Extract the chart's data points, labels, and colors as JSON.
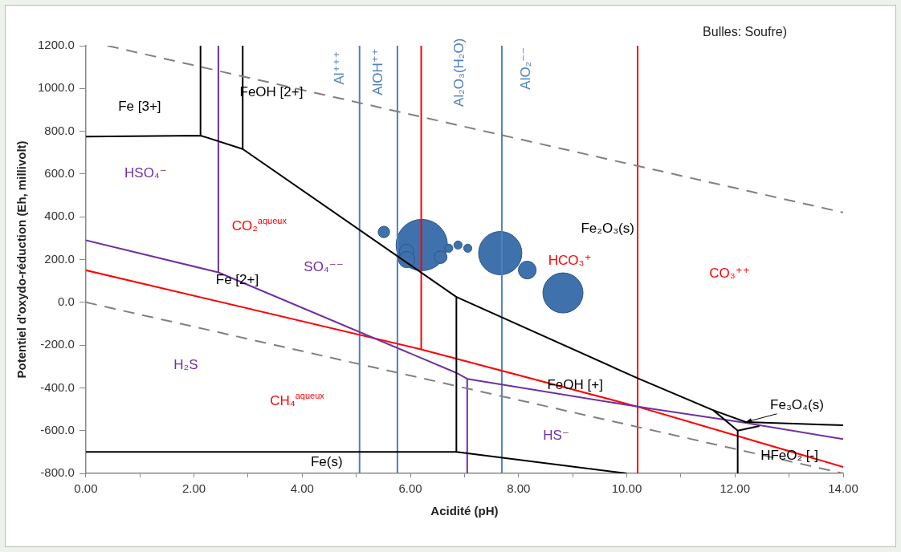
{
  "chart_data": {
    "type": "line",
    "title": "Bulles: Soufre)",
    "xlabel": "Acidité (pH)",
    "ylabel": "Potentiel d'oxydo-réduction (Eh, millivolt)",
    "xlim": [
      0,
      14
    ],
    "xticks": [
      {
        "value": 0,
        "label": "0.00"
      },
      {
        "value": 1,
        "label": null
      },
      {
        "value": 2,
        "label": "2.00"
      },
      {
        "value": 3,
        "label": null
      },
      {
        "value": 4,
        "label": "4.00"
      },
      {
        "value": 5,
        "label": null
      },
      {
        "value": 6,
        "label": "6.00"
      },
      {
        "value": 7,
        "label": null
      },
      {
        "value": 8,
        "label": "8.00"
      },
      {
        "value": 9,
        "label": null
      },
      {
        "value": 10,
        "label": "10.00"
      },
      {
        "value": 11,
        "label": null
      },
      {
        "value": 12,
        "label": "12.00"
      },
      {
        "value": 13,
        "label": null
      },
      {
        "value": 14,
        "label": "14.00"
      }
    ],
    "ylim": [
      -800,
      1200
    ],
    "yticks": [
      {
        "value": -800,
        "label": "-800.0"
      },
      {
        "value": -600,
        "label": "-600.0"
      },
      {
        "value": -400,
        "label": "-400.0"
      },
      {
        "value": -200,
        "label": "-200.0"
      },
      {
        "value": 0,
        "label": "0.0"
      },
      {
        "value": 200,
        "label": "200.0"
      },
      {
        "value": 400,
        "label": "400.0"
      },
      {
        "value": 600,
        "label": "600.0"
      },
      {
        "value": 800,
        "label": "800.0"
      },
      {
        "value": 1000,
        "label": "1000.0"
      },
      {
        "value": 1200,
        "label": "1200.0"
      }
    ],
    "grid": false,
    "legend": false,
    "series": [
      {
        "color": "#808080",
        "line_style": "dashed",
        "x": [
          0.4,
          14
        ],
        "values": [
          1200,
          420
        ]
      },
      {
        "color": "#808080",
        "line_style": "dashed",
        "x": [
          0,
          14
        ],
        "values": [
          0,
          -800
        ]
      },
      {
        "color": "#000000",
        "x": [
          0,
          2.12,
          2.9,
          6.85,
          10.2,
          11.6,
          12.05,
          12.05
        ],
        "values": [
          775,
          780,
          717,
          25,
          -355,
          -505,
          -600,
          -800
        ]
      },
      {
        "color": "#000000",
        "x": [
          2.12,
          2.12
        ],
        "values": [
          780,
          1200
        ]
      },
      {
        "color": "#000000",
        "x": [
          2.9,
          2.9
        ],
        "values": [
          717,
          1200
        ]
      },
      {
        "color": "#000000",
        "x": [
          6.85,
          6.85
        ],
        "values": [
          25,
          -700
        ]
      },
      {
        "color": "#000000",
        "x": [
          11.6,
          12.2,
          14
        ],
        "values": [
          -505,
          -560,
          -575
        ]
      },
      {
        "color": "#000000",
        "x": [
          12.05,
          12.45
        ],
        "values": [
          -600,
          -579
        ]
      },
      {
        "color": "#000000",
        "x": [
          0,
          6.85,
          10.0
        ],
        "values": [
          -700,
          -700,
          -800
        ]
      },
      {
        "color": "#7030a0",
        "x": [
          2.45,
          2.45
        ],
        "values": [
          1200,
          140
        ]
      },
      {
        "color": "#7030a0",
        "x": [
          0,
          2.45,
          6.85,
          7.05,
          10.2,
          12.1,
          14
        ],
        "values": [
          290,
          140,
          -330,
          -358,
          -488,
          -560,
          -640
        ]
      },
      {
        "color": "#7030a0",
        "x": [
          7.05,
          7.05
        ],
        "values": [
          -358,
          -800
        ]
      },
      {
        "color": "#ff0000",
        "x": [
          0,
          6.2,
          10.2,
          14
        ],
        "values": [
          150,
          -220,
          -488,
          -770
        ]
      },
      {
        "color": "#ff0000",
        "x": [
          6.2,
          6.2
        ],
        "values": [
          -220,
          1200
        ]
      },
      {
        "color": "#ff0000",
        "x": [
          10.2,
          10.2
        ],
        "values": [
          -800,
          1200
        ]
      },
      {
        "color": "#4f81bd",
        "x": [
          5.06,
          5.06
        ],
        "values": [
          1200,
          -800
        ]
      },
      {
        "color": "#4f81bd",
        "x": [
          5.76,
          5.76
        ],
        "values": [
          1200,
          -800
        ]
      },
      {
        "color": "#4f81bd",
        "x": [
          7.69,
          7.69
        ],
        "values": [
          1200,
          -800
        ]
      },
      {
        "type": "bubble",
        "color": "#3f72ad",
        "x": [
          5.51,
          6.21,
          5.93,
          5.93,
          6.56,
          6.71,
          6.88,
          7.06,
          7.66,
          8.16,
          8.82
        ],
        "values": [
          329,
          268,
          238,
          200,
          211,
          253,
          268,
          253,
          230,
          151,
          44
        ],
        "sizes": [
          0.05,
          1,
          0.08,
          0.1,
          0.06,
          0.025,
          0.025,
          0.025,
          0.71,
          0.12,
          0.61
        ]
      }
    ],
    "annotations": [
      "Fe [3+]",
      "FeOH [2+]",
      "HSO₄⁻",
      "CO₂$^{aqueux}$",
      "SO₄⁻⁻",
      "Fe [2+]",
      "H₂S",
      "CH₄$^{aqueux}$",
      "Fe(s)",
      "HS⁻",
      "FeOH [+]",
      "Fe₂O₃(s)",
      "HCO₃⁺",
      "CO₃⁺⁺",
      {
        "text": "Fe₃O₄(s)",
        "x": 12.2,
        "y": -560
      },
      "HFeO₂ [-]",
      "Al⁺⁺⁺",
      "AlOH⁺⁺",
      "Al₂O₃(H₂O)",
      "AlO₂⁻⁻"
    ]
  }
}
